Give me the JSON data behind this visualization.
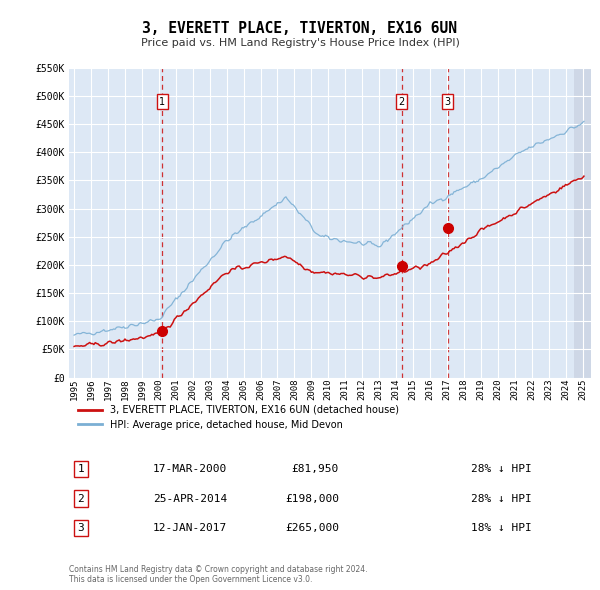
{
  "title": "3, EVERETT PLACE, TIVERTON, EX16 6UN",
  "subtitle": "Price paid vs. HM Land Registry's House Price Index (HPI)",
  "hpi_color": "#7bafd4",
  "price_color": "#cc1111",
  "sale_dot_color": "#cc0000",
  "vline_color": "#cc1111",
  "bg_color": "#dde8f5",
  "grid_color": "#ffffff",
  "ylim": [
    0,
    550000
  ],
  "xlim_start": 1994.7,
  "xlim_end": 2025.5,
  "yticks": [
    0,
    50000,
    100000,
    150000,
    200000,
    250000,
    300000,
    350000,
    400000,
    450000,
    500000,
    550000
  ],
  "ytick_labels": [
    "£0",
    "£50K",
    "£100K",
    "£150K",
    "£200K",
    "£250K",
    "£300K",
    "£350K",
    "£400K",
    "£450K",
    "£500K",
    "£550K"
  ],
  "xticks": [
    1995,
    1996,
    1997,
    1998,
    1999,
    2000,
    2001,
    2002,
    2003,
    2004,
    2005,
    2006,
    2007,
    2008,
    2009,
    2010,
    2011,
    2012,
    2013,
    2014,
    2015,
    2016,
    2017,
    2018,
    2019,
    2020,
    2021,
    2022,
    2023,
    2024,
    2025
  ],
  "sale_dates": [
    2000.21,
    2014.32,
    2017.04
  ],
  "sale_prices": [
    81950,
    198000,
    265000
  ],
  "sale_labels": [
    "1",
    "2",
    "3"
  ],
  "legend_red_label": "3, EVERETT PLACE, TIVERTON, EX16 6UN (detached house)",
  "legend_blue_label": "HPI: Average price, detached house, Mid Devon",
  "table_rows": [
    {
      "num": "1",
      "date": "17-MAR-2000",
      "price": "£81,950",
      "pct": "28% ↓ HPI"
    },
    {
      "num": "2",
      "date": "25-APR-2014",
      "price": "£198,000",
      "pct": "28% ↓ HPI"
    },
    {
      "num": "3",
      "date": "12-JAN-2017",
      "price": "£265,000",
      "pct": "18% ↓ HPI"
    }
  ],
  "footnote": "Contains HM Land Registry data © Crown copyright and database right 2024.\nThis data is licensed under the Open Government Licence v3.0."
}
